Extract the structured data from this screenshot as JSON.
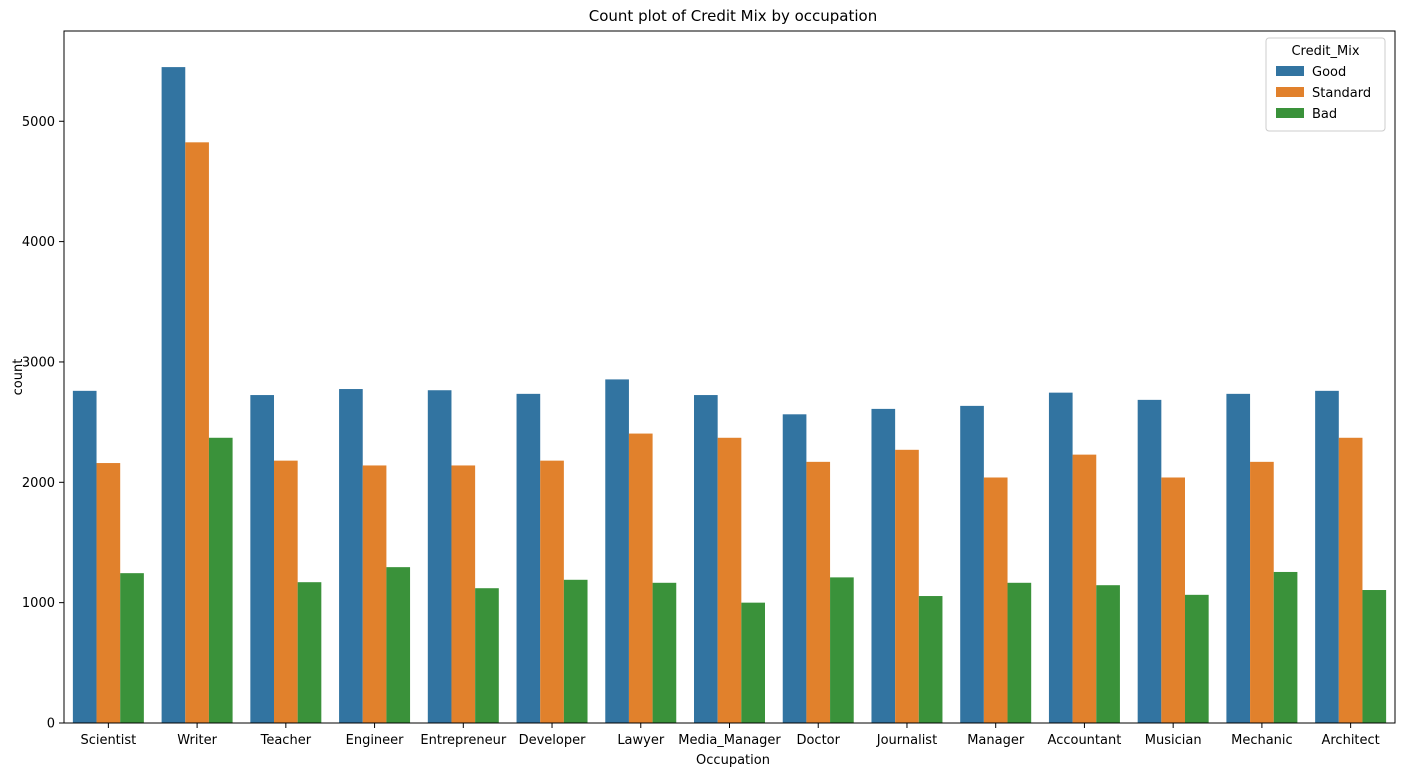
{
  "chart_data": {
    "type": "bar",
    "title": "Count plot of Credit Mix by occupation",
    "xlabel": "Occupation",
    "ylabel": "count",
    "ylim": [
      0,
      5750
    ],
    "yticks": [
      0,
      1000,
      2000,
      3000,
      4000,
      5000
    ],
    "grid": false,
    "legend": {
      "title": "Credit_Mix",
      "placement": "top-right"
    },
    "categories": [
      "Scientist",
      "Writer",
      "Teacher",
      "Engineer",
      "Entrepreneur",
      "Developer",
      "Lawyer",
      "Media_Manager",
      "Doctor",
      "Journalist",
      "Manager",
      "Accountant",
      "Musician",
      "Mechanic",
      "Architect"
    ],
    "series": [
      {
        "name": "Good",
        "color": "#3274a1",
        "values": [
          2760,
          5450,
          2725,
          2775,
          2765,
          2735,
          2855,
          2725,
          2565,
          2610,
          2635,
          2745,
          2685,
          2735,
          2760
        ]
      },
      {
        "name": "Standard",
        "color": "#e1812c",
        "values": [
          2160,
          4825,
          2180,
          2140,
          2140,
          2180,
          2405,
          2370,
          2170,
          2270,
          2040,
          2230,
          2040,
          2170,
          2370
        ]
      },
      {
        "name": "Bad",
        "color": "#3a923a",
        "values": [
          1245,
          2370,
          1170,
          1295,
          1120,
          1190,
          1165,
          1000,
          1210,
          1055,
          1165,
          1145,
          1065,
          1255,
          1105
        ]
      }
    ]
  }
}
